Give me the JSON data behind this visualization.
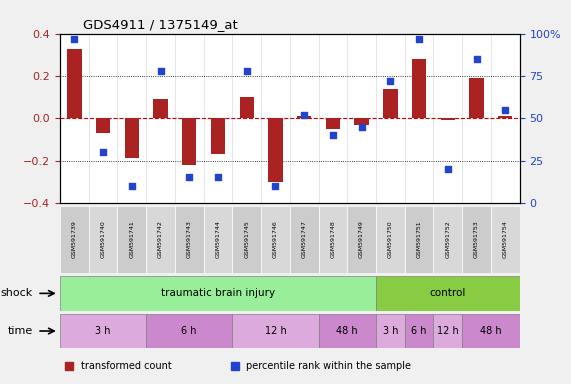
{
  "title": "GDS4911 / 1375149_at",
  "samples": [
    "GSM591739",
    "GSM591740",
    "GSM591741",
    "GSM591742",
    "GSM591743",
    "GSM591744",
    "GSM591745",
    "GSM591746",
    "GSM591747",
    "GSM591748",
    "GSM591749",
    "GSM591750",
    "GSM591751",
    "GSM591752",
    "GSM591753",
    "GSM591754"
  ],
  "bar_values": [
    0.33,
    -0.07,
    -0.19,
    0.09,
    -0.22,
    -0.17,
    0.1,
    -0.3,
    0.01,
    -0.05,
    -0.03,
    0.14,
    0.28,
    -0.01,
    0.19,
    0.01
  ],
  "dot_values": [
    97,
    30,
    10,
    78,
    15,
    15,
    78,
    10,
    52,
    40,
    45,
    72,
    97,
    20,
    85,
    55
  ],
  "bar_color": "#aa2222",
  "dot_color": "#2244cc",
  "ylim_left": [
    -0.4,
    0.4
  ],
  "ylim_right": [
    0,
    100
  ],
  "yticks_left": [
    -0.4,
    -0.2,
    0.0,
    0.2,
    0.4
  ],
  "yticks_right": [
    0,
    25,
    50,
    75,
    100
  ],
  "yticklabels_right": [
    "0",
    "25",
    "50",
    "75",
    "100%"
  ],
  "hline_y": 0.0,
  "hline_color": "#cc0000",
  "dotted_lines": [
    -0.2,
    0.2
  ],
  "shock_label": "shock",
  "time_label": "time",
  "shock_groups": [
    {
      "label": "traumatic brain injury",
      "start": 0,
      "end": 11,
      "color": "#99ee99"
    },
    {
      "label": "control",
      "start": 11,
      "end": 16,
      "color": "#88cc44"
    }
  ],
  "time_groups": [
    {
      "label": "3 h",
      "start": 0,
      "end": 3,
      "color": "#ddaadd"
    },
    {
      "label": "6 h",
      "start": 3,
      "end": 6,
      "color": "#cc88cc"
    },
    {
      "label": "12 h",
      "start": 6,
      "end": 9,
      "color": "#ddaadd"
    },
    {
      "label": "48 h",
      "start": 9,
      "end": 11,
      "color": "#cc88cc"
    },
    {
      "label": "3 h",
      "start": 11,
      "end": 12,
      "color": "#ddaadd"
    },
    {
      "label": "6 h",
      "start": 12,
      "end": 13,
      "color": "#cc88cc"
    },
    {
      "label": "12 h",
      "start": 13,
      "end": 14,
      "color": "#ddaadd"
    },
    {
      "label": "48 h",
      "start": 14,
      "end": 16,
      "color": "#cc88cc"
    }
  ],
  "legend_items": [
    {
      "label": "transformed count",
      "color": "#aa2222"
    },
    {
      "label": "percentile rank within the sample",
      "color": "#2244cc"
    }
  ],
  "bg_color": "#f0f0f0",
  "plot_bg": "#ffffff"
}
